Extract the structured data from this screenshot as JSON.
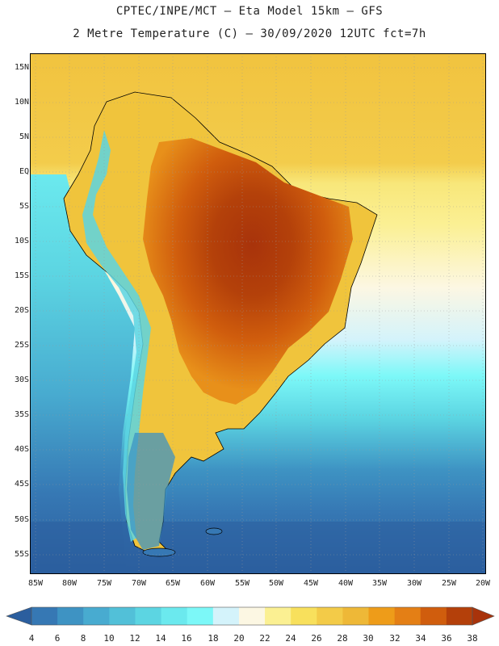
{
  "header": {
    "line1": "CPTEC/INPE/MCT –  Eta Model 15km – GFS",
    "line2": "2 Metre Temperature (C) – 30/09/2020 12UTC fct=7h"
  },
  "map": {
    "lat_labels": [
      "15N",
      "10N",
      "5N",
      "EQ",
      "5S",
      "10S",
      "15S",
      "20S",
      "25S",
      "30S",
      "35S",
      "40S",
      "45S",
      "50S",
      "55S"
    ],
    "lon_labels": [
      "85W",
      "80W",
      "75W",
      "70W",
      "65W",
      "60W",
      "55W",
      "50W",
      "45W",
      "40W",
      "35W",
      "30W",
      "25W",
      "20W"
    ],
    "colors": {
      "ocean_cold": "#2a5fa4",
      "ocean_mid": "#3d97c8",
      "ocean_warm": "#5fd6e2",
      "land_hot": "#b4410a",
      "land_warm": "#dd7a14",
      "tropics": "#f0c43c",
      "borders": "#000000"
    }
  },
  "colorbar": {
    "labels": [
      "4",
      "6",
      "8",
      "10",
      "12",
      "14",
      "16",
      "18",
      "20",
      "22",
      "24",
      "26",
      "28",
      "30",
      "32",
      "34",
      "36",
      "38"
    ],
    "colors": [
      "#2b5e9e",
      "#3678b4",
      "#3e93c3",
      "#48abd0",
      "#52c0d8",
      "#5cd5e2",
      "#6be9ee",
      "#7cf8f8",
      "#d4f3fb",
      "#fcf7e3",
      "#fbf092",
      "#f8e05c",
      "#f3cb48",
      "#eeb837",
      "#ee9c19",
      "#e47f15",
      "#d05d0d",
      "#b4400a",
      "#a8330b"
    ]
  }
}
